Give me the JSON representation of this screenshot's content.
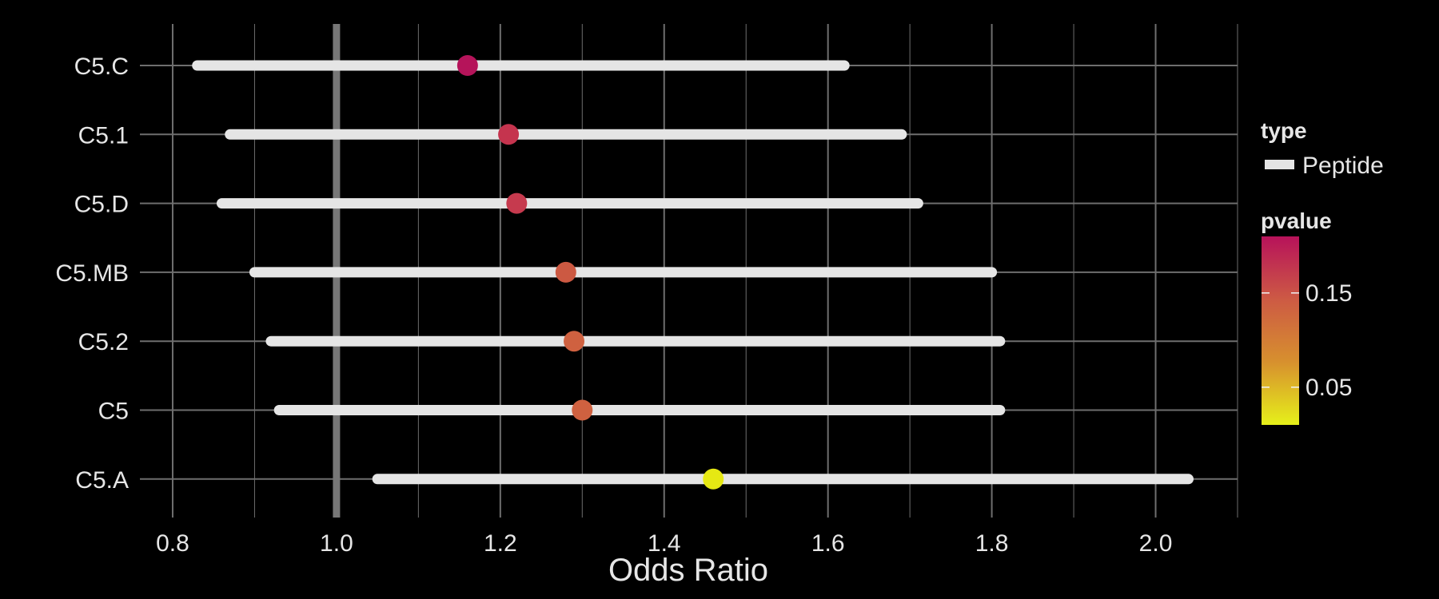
{
  "chart_data": {
    "type": "forest",
    "xlabel": "Odds Ratio",
    "xlim": [
      0.76,
      2.1
    ],
    "x_ticks": [
      "0.8",
      "1.0",
      "1.2",
      "1.4",
      "1.6",
      "1.8",
      "2.0"
    ],
    "x_tick_values": [
      0.8,
      1.0,
      1.2,
      1.4,
      1.6,
      1.8,
      2.0
    ],
    "reference_line": 1.0,
    "grid": true,
    "rows": [
      {
        "label": "C5.C",
        "or": 1.16,
        "lower": 0.83,
        "upper": 1.62,
        "pvalue": 0.2,
        "color": "#b5145a"
      },
      {
        "label": "C5.1",
        "or": 1.21,
        "lower": 0.87,
        "upper": 1.69,
        "pvalue": 0.18,
        "color": "#c5344e"
      },
      {
        "label": "C5.D",
        "or": 1.22,
        "lower": 0.86,
        "upper": 1.71,
        "pvalue": 0.18,
        "color": "#c63a4e"
      },
      {
        "label": "C5.MB",
        "or": 1.28,
        "lower": 0.9,
        "upper": 1.8,
        "pvalue": 0.15,
        "color": "#cc5942"
      },
      {
        "label": "C5.2",
        "or": 1.29,
        "lower": 0.92,
        "upper": 1.81,
        "pvalue": 0.14,
        "color": "#cf6140"
      },
      {
        "label": "C5",
        "or": 1.3,
        "lower": 0.93,
        "upper": 1.81,
        "pvalue": 0.14,
        "color": "#cf6140"
      },
      {
        "label": "C5.A",
        "or": 1.46,
        "lower": 1.05,
        "upper": 2.04,
        "pvalue": 0.02,
        "color": "#e6e813"
      }
    ],
    "legend": {
      "placement": "right",
      "type_title": "type",
      "type_item": "Peptide",
      "pvalue_title": "pvalue",
      "pvalue_ticks": [
        "0.15",
        "0.05"
      ],
      "pvalue_tick_values": [
        0.15,
        0.05
      ],
      "pvalue_range": [
        0.01,
        0.21
      ],
      "gradient_colors": [
        "#e6f01a",
        "#d7902e",
        "#cd5a44",
        "#b7125a"
      ]
    },
    "colors": {
      "background": "#000000",
      "grid": "#6e6e6e",
      "interval": "#e5e5e5",
      "reference": "#777777",
      "text": "#e6e6e6"
    }
  }
}
